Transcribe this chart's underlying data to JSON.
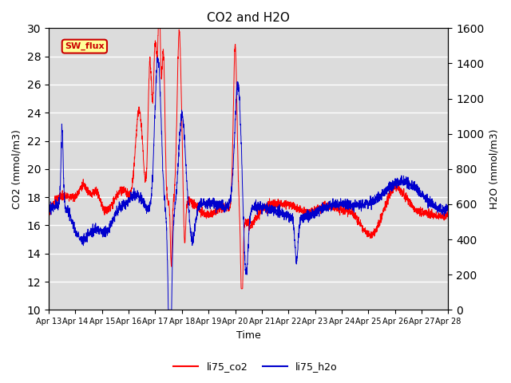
{
  "title": "CO2 and H2O",
  "xlabel": "Time",
  "ylabel_left": "CO2 (mmol/m3)",
  "ylabel_right": "H2O (mmol/m3)",
  "ylim_left": [
    10,
    30
  ],
  "ylim_right": [
    0,
    1600
  ],
  "yticks_left": [
    10,
    12,
    14,
    16,
    18,
    20,
    22,
    24,
    26,
    28,
    30
  ],
  "yticks_right": [
    0,
    200,
    400,
    600,
    800,
    1000,
    1200,
    1400,
    1600
  ],
  "xtick_labels": [
    "Apr 13",
    "Apr 14",
    "Apr 15",
    "Apr 16",
    "Apr 17",
    "Apr 18",
    "Apr 19",
    "Apr 20",
    "Apr 21",
    "Apr 22",
    "Apr 23",
    "Apr 24",
    "Apr 25",
    "Apr 26",
    "Apr 27",
    "Apr 28"
  ],
  "label_co2": "li75_co2",
  "label_h2o": "li75_h2o",
  "color_co2": "#FF0000",
  "color_h2o": "#0000CD",
  "bg_color": "#DCDCDC",
  "annotation_text": "SW_flux",
  "annotation_bg": "#FFFF99",
  "annotation_border": "#CC0000"
}
